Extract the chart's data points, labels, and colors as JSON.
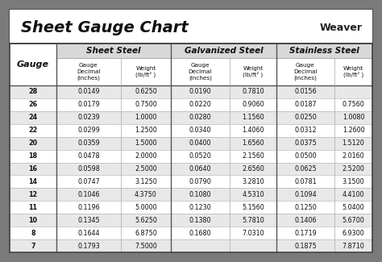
{
  "title": "Sheet Gauge Chart",
  "bg_outer": "#7a7a7a",
  "bg_inner": "#ffffff",
  "gauges": [
    28,
    26,
    24,
    22,
    20,
    18,
    16,
    14,
    12,
    11,
    10,
    8,
    7
  ],
  "sheet_steel": {
    "decimal": [
      "0.0149",
      "0.0179",
      "0.0239",
      "0.0299",
      "0.0359",
      "0.0478",
      "0.0598",
      "0.0747",
      "0.1046",
      "0.1196",
      "0.1345",
      "0.1644",
      "0.1793"
    ],
    "weight": [
      "0.6250",
      "0.7500",
      "1.0000",
      "1.2500",
      "1.5000",
      "2.0000",
      "2.5000",
      "3.1250",
      "4.3750",
      "5.0000",
      "5.6250",
      "6.8750",
      "7.5000"
    ]
  },
  "galvanized_steel": {
    "decimal": [
      "0.0190",
      "0.0220",
      "0.0280",
      "0.0340",
      "0.0400",
      "0.0520",
      "0.0640",
      "0.0790",
      "0.1080",
      "0.1230",
      "0.1380",
      "0.1680",
      ""
    ],
    "weight": [
      "0.7810",
      "0.9060",
      "1.1560",
      "1.4060",
      "1.6560",
      "2.1560",
      "2.6560",
      "3.2810",
      "4.5310",
      "5.1560",
      "5.7810",
      "7.0310",
      ""
    ]
  },
  "stainless_steel": {
    "decimal": [
      "0.0156",
      "0.0187",
      "0.0250",
      "0.0312",
      "0.0375",
      "0.0500",
      "0.0625",
      "0.0781",
      "0.1094",
      "0.1250",
      "0.1406",
      "0.1719",
      "0.1875"
    ],
    "weight": [
      "",
      "0.7560",
      "1.0080",
      "1.2600",
      "1.5120",
      "2.0160",
      "2.5200",
      "3.1500",
      "4.4100",
      "5.0400",
      "5.6700",
      "6.9300",
      "7.8710"
    ]
  },
  "row_colors": [
    "#e8e8e8",
    "#ffffff",
    "#e8e8e8",
    "#ffffff",
    "#e8e8e8",
    "#ffffff",
    "#e8e8e8",
    "#ffffff",
    "#e8e8e8",
    "#ffffff",
    "#e8e8e8",
    "#ffffff",
    "#e8e8e8"
  ],
  "header_bg": "#d0d0d0",
  "section_border": "#555555",
  "col_divider": "#888888"
}
